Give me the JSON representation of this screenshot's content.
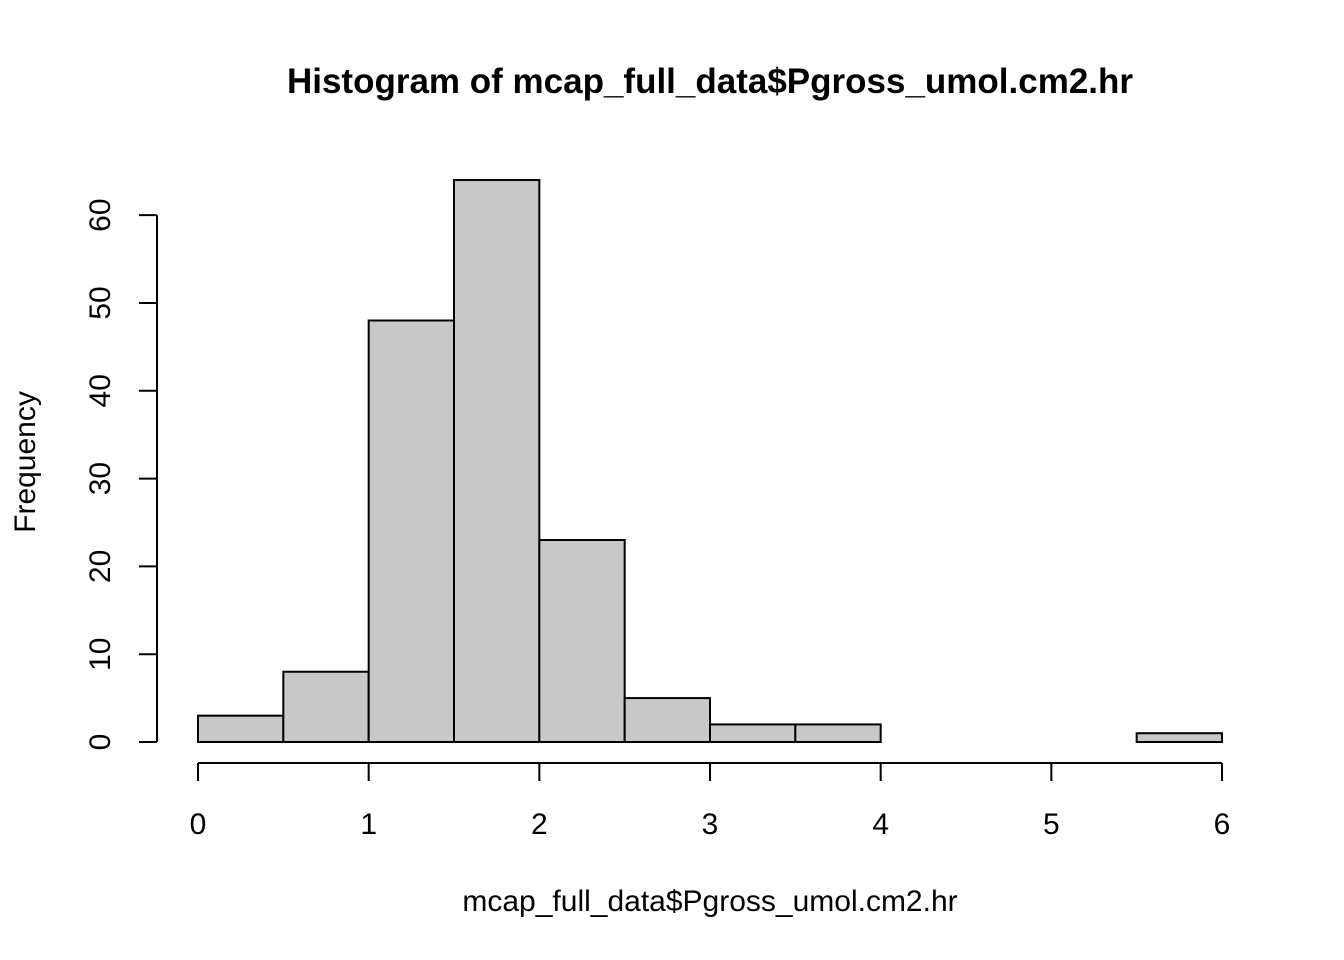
{
  "chart_data": {
    "type": "bar",
    "subtype": "histogram",
    "title": "Histogram of mcap_full_data$Pgross_umol.cm2.hr",
    "xlabel": "mcap_full_data$Pgross_umol.cm2.hr",
    "ylabel": "Frequency",
    "bins": [
      {
        "start": 0.0,
        "end": 0.5,
        "count": 3
      },
      {
        "start": 0.5,
        "end": 1.0,
        "count": 8
      },
      {
        "start": 1.0,
        "end": 1.5,
        "count": 48
      },
      {
        "start": 1.5,
        "end": 2.0,
        "count": 64
      },
      {
        "start": 2.0,
        "end": 2.5,
        "count": 23
      },
      {
        "start": 2.5,
        "end": 3.0,
        "count": 5
      },
      {
        "start": 3.0,
        "end": 3.5,
        "count": 2
      },
      {
        "start": 3.5,
        "end": 4.0,
        "count": 2
      },
      {
        "start": 4.0,
        "end": 4.5,
        "count": 0
      },
      {
        "start": 4.5,
        "end": 5.0,
        "count": 0
      },
      {
        "start": 5.0,
        "end": 5.5,
        "count": 0
      },
      {
        "start": 5.5,
        "end": 6.0,
        "count": 1
      }
    ],
    "xlim": [
      0,
      6
    ],
    "ylim": [
      0,
      64
    ],
    "xticks": [
      "0",
      "1",
      "2",
      "3",
      "4",
      "5",
      "6"
    ],
    "yticks": [
      "0",
      "10",
      "20",
      "30",
      "40",
      "50",
      "60"
    ],
    "bar_color": "#c8c8c8",
    "grid": false,
    "legend": "none"
  }
}
